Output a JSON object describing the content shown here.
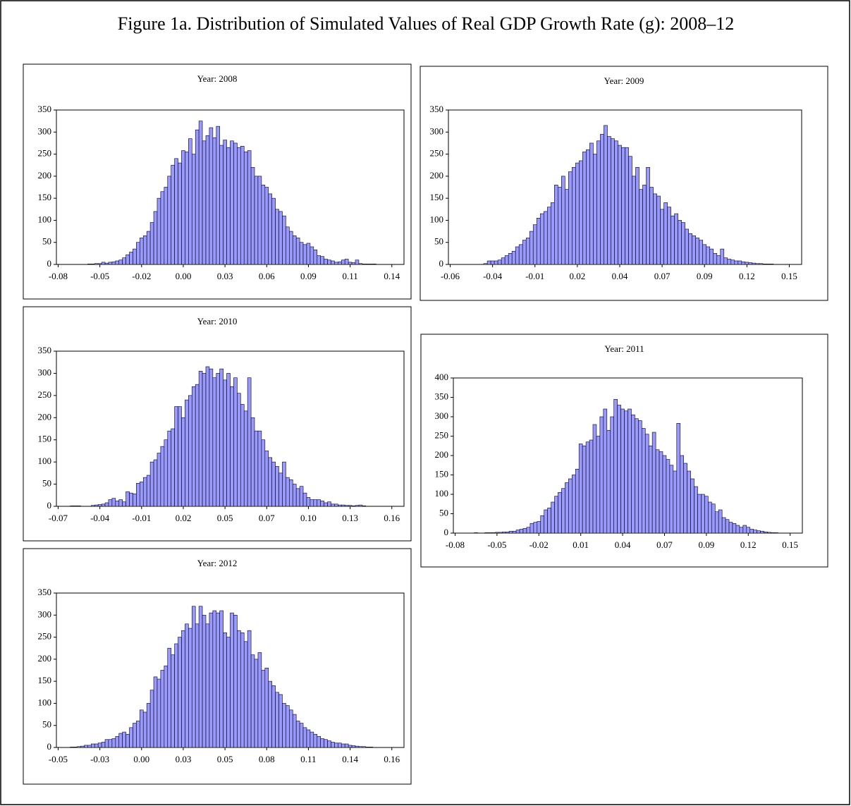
{
  "title": "Figure 1a. Distribution of Simulated Values of Real GDP Growth Rate (g): 2008–12",
  "chart_data": [
    {
      "type": "bar",
      "title": "Year: 2008",
      "color": "#9999ff",
      "ylim": [
        0,
        350
      ],
      "yticks": [
        0,
        50,
        100,
        150,
        200,
        250,
        300,
        350
      ],
      "categories": [
        "-0.08",
        null,
        null,
        null,
        null,
        null,
        null,
        null,
        null,
        null,
        null,
        null,
        "-0.05",
        null,
        null,
        null,
        null,
        null,
        null,
        null,
        null,
        null,
        null,
        null,
        "-0.02",
        null,
        null,
        null,
        null,
        null,
        null,
        null,
        null,
        null,
        null,
        null,
        "0.00",
        null,
        null,
        null,
        null,
        null,
        null,
        null,
        null,
        null,
        null,
        null,
        "0.03",
        null,
        null,
        null,
        null,
        null,
        null,
        null,
        null,
        null,
        null,
        null,
        "0.06",
        null,
        null,
        null,
        null,
        null,
        null,
        null,
        null,
        null,
        null,
        null,
        "0.09",
        null,
        null,
        null,
        null,
        null,
        null,
        null,
        null,
        null,
        null,
        null,
        "0.11",
        null,
        null,
        null,
        null,
        null,
        null,
        null,
        null,
        null,
        null,
        null,
        "0.14",
        null,
        null,
        null
      ],
      "values": [
        0,
        0,
        0,
        0,
        0,
        0,
        0,
        0,
        0,
        1,
        1,
        2,
        2,
        5,
        3,
        5,
        6,
        8,
        10,
        15,
        22,
        28,
        35,
        50,
        60,
        65,
        75,
        95,
        120,
        150,
        165,
        175,
        200,
        225,
        240,
        230,
        258,
        255,
        285,
        250,
        305,
        325,
        280,
        292,
        310,
        287,
        313,
        270,
        282,
        265,
        280,
        275,
        265,
        268,
        255,
        258,
        220,
        200,
        200,
        180,
        175,
        160,
        150,
        125,
        120,
        110,
        85,
        75,
        65,
        60,
        50,
        45,
        48,
        40,
        33,
        20,
        18,
        12,
        10,
        8,
        5,
        6,
        10,
        12,
        5,
        4,
        10,
        2,
        1,
        1,
        1,
        1,
        0,
        0,
        0,
        0,
        0,
        0,
        0,
        0
      ]
    },
    {
      "type": "bar",
      "title": "Year: 2009",
      "color": "#9999ff",
      "ylim": [
        0,
        350
      ],
      "yticks": [
        0,
        50,
        100,
        150,
        200,
        250,
        300,
        350
      ],
      "categories": [
        "-0.06",
        null,
        null,
        null,
        null,
        null,
        null,
        null,
        null,
        null,
        null,
        null,
        "-0.04",
        null,
        null,
        null,
        null,
        null,
        null,
        null,
        null,
        null,
        null,
        null,
        "-0.01",
        null,
        null,
        null,
        null,
        null,
        null,
        null,
        null,
        null,
        null,
        null,
        "0.02",
        null,
        null,
        null,
        null,
        null,
        null,
        null,
        null,
        null,
        null,
        null,
        "0.04",
        null,
        null,
        null,
        null,
        null,
        null,
        null,
        null,
        null,
        null,
        null,
        "0.07",
        null,
        null,
        null,
        null,
        null,
        null,
        null,
        null,
        null,
        null,
        null,
        "0.09",
        null,
        null,
        null,
        null,
        null,
        null,
        null,
        null,
        null,
        null,
        null,
        "0.12",
        null,
        null,
        null,
        null,
        null,
        null,
        null,
        null,
        null,
        null,
        null,
        "0.15",
        null,
        null,
        null
      ],
      "values": [
        0,
        0,
        0,
        0,
        0,
        0,
        0,
        0,
        0,
        0,
        2,
        8,
        8,
        8,
        10,
        15,
        20,
        25,
        30,
        40,
        45,
        55,
        60,
        75,
        90,
        105,
        115,
        120,
        130,
        140,
        180,
        175,
        200,
        170,
        210,
        220,
        230,
        235,
        255,
        260,
        275,
        250,
        280,
        295,
        315,
        290,
        285,
        280,
        270,
        265,
        265,
        245,
        200,
        220,
        170,
        180,
        220,
        175,
        160,
        155,
        125,
        140,
        130,
        110,
        115,
        100,
        95,
        80,
        70,
        65,
        60,
        55,
        45,
        40,
        35,
        25,
        20,
        35,
        15,
        12,
        10,
        8,
        8,
        6,
        5,
        4,
        3,
        2,
        2,
        1,
        1,
        1,
        0,
        0,
        0,
        0,
        0,
        0,
        0,
        0
      ]
    },
    {
      "type": "bar",
      "title": "Year: 2010",
      "color": "#9999ff",
      "ylim": [
        0,
        350
      ],
      "yticks": [
        0,
        50,
        100,
        150,
        200,
        250,
        300,
        350
      ],
      "categories": [
        "-0.07",
        null,
        null,
        null,
        null,
        null,
        null,
        null,
        null,
        null,
        null,
        null,
        "-0.04",
        null,
        null,
        null,
        null,
        null,
        null,
        null,
        null,
        null,
        null,
        null,
        "-0.01",
        null,
        null,
        null,
        null,
        null,
        null,
        null,
        null,
        null,
        null,
        null,
        "0.02",
        null,
        null,
        null,
        null,
        null,
        null,
        null,
        null,
        null,
        null,
        null,
        "0.05",
        null,
        null,
        null,
        null,
        null,
        null,
        null,
        null,
        null,
        null,
        null,
        "0.07",
        null,
        null,
        null,
        null,
        null,
        null,
        null,
        null,
        null,
        null,
        null,
        "0.10",
        null,
        null,
        null,
        null,
        null,
        null,
        null,
        null,
        null,
        null,
        null,
        "0.13",
        null,
        null,
        null,
        null,
        null,
        null,
        null,
        null,
        null,
        null,
        null,
        "0.16",
        null,
        null,
        null
      ],
      "values": [
        0,
        0,
        0,
        0,
        1,
        1,
        1,
        0,
        0,
        0,
        2,
        3,
        4,
        5,
        8,
        15,
        18,
        12,
        15,
        10,
        33,
        30,
        28,
        52,
        55,
        65,
        70,
        100,
        105,
        120,
        135,
        150,
        170,
        175,
        225,
        225,
        200,
        240,
        250,
        270,
        275,
        305,
        300,
        315,
        310,
        290,
        300,
        310,
        285,
        300,
        270,
        290,
        255,
        230,
        215,
        290,
        200,
        170,
        170,
        150,
        125,
        110,
        100,
        90,
        75,
        100,
        65,
        60,
        50,
        40,
        45,
        30,
        20,
        15,
        15,
        15,
        12,
        8,
        10,
        5,
        5,
        3,
        3,
        2,
        2,
        1,
        2,
        3,
        1,
        0,
        0,
        0,
        0,
        0,
        0,
        0,
        0,
        0,
        0,
        0
      ]
    },
    {
      "type": "bar",
      "title": "Year: 2011",
      "color": "#9999ff",
      "ylim": [
        0,
        400
      ],
      "yticks": [
        0,
        50,
        100,
        150,
        200,
        250,
        300,
        350,
        400
      ],
      "categories": [
        "-0.08",
        null,
        null,
        null,
        null,
        null,
        null,
        null,
        null,
        null,
        null,
        null,
        "-0.05",
        null,
        null,
        null,
        null,
        null,
        null,
        null,
        null,
        null,
        null,
        null,
        "-0.02",
        null,
        null,
        null,
        null,
        null,
        null,
        null,
        null,
        null,
        null,
        null,
        "0.01",
        null,
        null,
        null,
        null,
        null,
        null,
        null,
        null,
        null,
        null,
        null,
        "0.04",
        null,
        null,
        null,
        null,
        null,
        null,
        null,
        null,
        null,
        null,
        null,
        "0.07",
        null,
        null,
        null,
        null,
        null,
        null,
        null,
        null,
        null,
        null,
        null,
        "0.09",
        null,
        null,
        null,
        null,
        null,
        null,
        null,
        null,
        null,
        null,
        null,
        "0.12",
        null,
        null,
        null,
        null,
        null,
        null,
        null,
        null,
        null,
        null,
        null,
        "0.15",
        null,
        null,
        null
      ],
      "values": [
        0,
        0,
        0,
        0,
        0,
        0,
        1,
        0,
        0,
        1,
        1,
        1,
        2,
        2,
        3,
        3,
        5,
        5,
        8,
        10,
        12,
        15,
        25,
        28,
        30,
        45,
        60,
        65,
        80,
        95,
        105,
        115,
        130,
        140,
        150,
        165,
        230,
        225,
        235,
        240,
        280,
        250,
        300,
        320,
        265,
        300,
        345,
        330,
        320,
        315,
        320,
        305,
        295,
        290,
        270,
        255,
        225,
        260,
        215,
        210,
        200,
        190,
        175,
        160,
        283,
        200,
        180,
        160,
        140,
        120,
        100,
        100,
        95,
        80,
        75,
        55,
        60,
        40,
        35,
        28,
        25,
        20,
        15,
        20,
        15,
        10,
        8,
        6,
        5,
        3,
        2,
        1,
        1,
        0,
        0,
        0,
        0,
        0,
        0,
        0
      ]
    },
    {
      "type": "bar",
      "title": "Year: 2012",
      "color": "#9999ff",
      "ylim": [
        0,
        350
      ],
      "yticks": [
        0,
        50,
        100,
        150,
        200,
        250,
        300,
        350
      ],
      "categories": [
        "-0.05",
        null,
        null,
        null,
        null,
        null,
        null,
        null,
        null,
        null,
        null,
        null,
        "-0.03",
        null,
        null,
        null,
        null,
        null,
        null,
        null,
        null,
        null,
        null,
        null,
        "0.00",
        null,
        null,
        null,
        null,
        null,
        null,
        null,
        null,
        null,
        null,
        null,
        "0.03",
        null,
        null,
        null,
        null,
        null,
        null,
        null,
        null,
        null,
        null,
        null,
        "0.05",
        null,
        null,
        null,
        null,
        null,
        null,
        null,
        null,
        null,
        null,
        null,
        "0.08",
        null,
        null,
        null,
        null,
        null,
        null,
        null,
        null,
        null,
        null,
        null,
        "0.11",
        null,
        null,
        null,
        null,
        null,
        null,
        null,
        null,
        null,
        null,
        null,
        "0.14",
        null,
        null,
        null,
        null,
        null,
        null,
        null,
        null,
        null,
        null,
        null,
        "0.16",
        null,
        null,
        null
      ],
      "values": [
        0,
        0,
        0,
        0,
        1,
        1,
        2,
        3,
        5,
        5,
        8,
        8,
        10,
        12,
        18,
        18,
        20,
        25,
        32,
        35,
        30,
        45,
        55,
        60,
        85,
        80,
        100,
        130,
        160,
        155,
        175,
        185,
        225,
        210,
        235,
        250,
        265,
        280,
        270,
        320,
        280,
        320,
        300,
        280,
        305,
        310,
        305,
        310,
        260,
        250,
        305,
        300,
        265,
        260,
        240,
        265,
        210,
        200,
        215,
        175,
        180,
        150,
        140,
        125,
        120,
        100,
        95,
        85,
        75,
        60,
        55,
        45,
        40,
        35,
        30,
        25,
        20,
        18,
        15,
        12,
        10,
        10,
        8,
        8,
        5,
        4,
        3,
        2,
        2,
        1,
        1,
        0,
        0,
        0,
        0,
        0,
        0,
        0,
        0,
        0
      ]
    }
  ]
}
